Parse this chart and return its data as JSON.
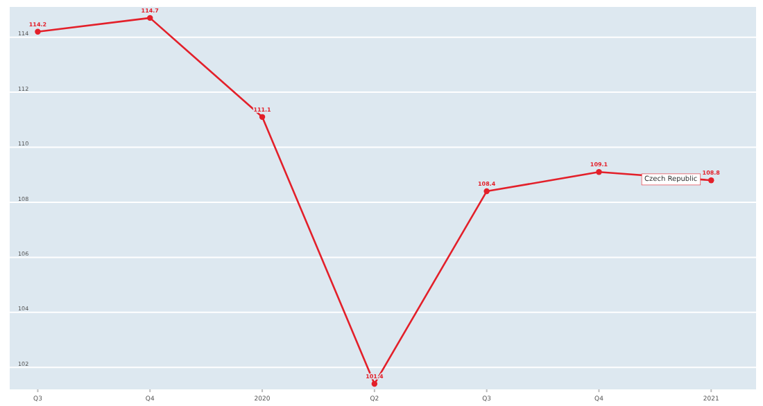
{
  "chart_data": {
    "type": "line",
    "categories": [
      "Q3",
      "Q4",
      "2020",
      "Q2",
      "Q3",
      "Q4",
      "2021"
    ],
    "series": [
      {
        "name": "Czech Republic",
        "color": "#e3202a",
        "values": [
          114.2,
          114.7,
          111.1,
          101.4,
          108.4,
          109.1,
          108.8
        ]
      }
    ],
    "ylim": [
      101.2,
      115.1
    ],
    "yticks": [
      102,
      104,
      106,
      108,
      110,
      112,
      114
    ],
    "grid": "y",
    "marker": "circle",
    "line_style": "solid",
    "data_labels": true
  }
}
